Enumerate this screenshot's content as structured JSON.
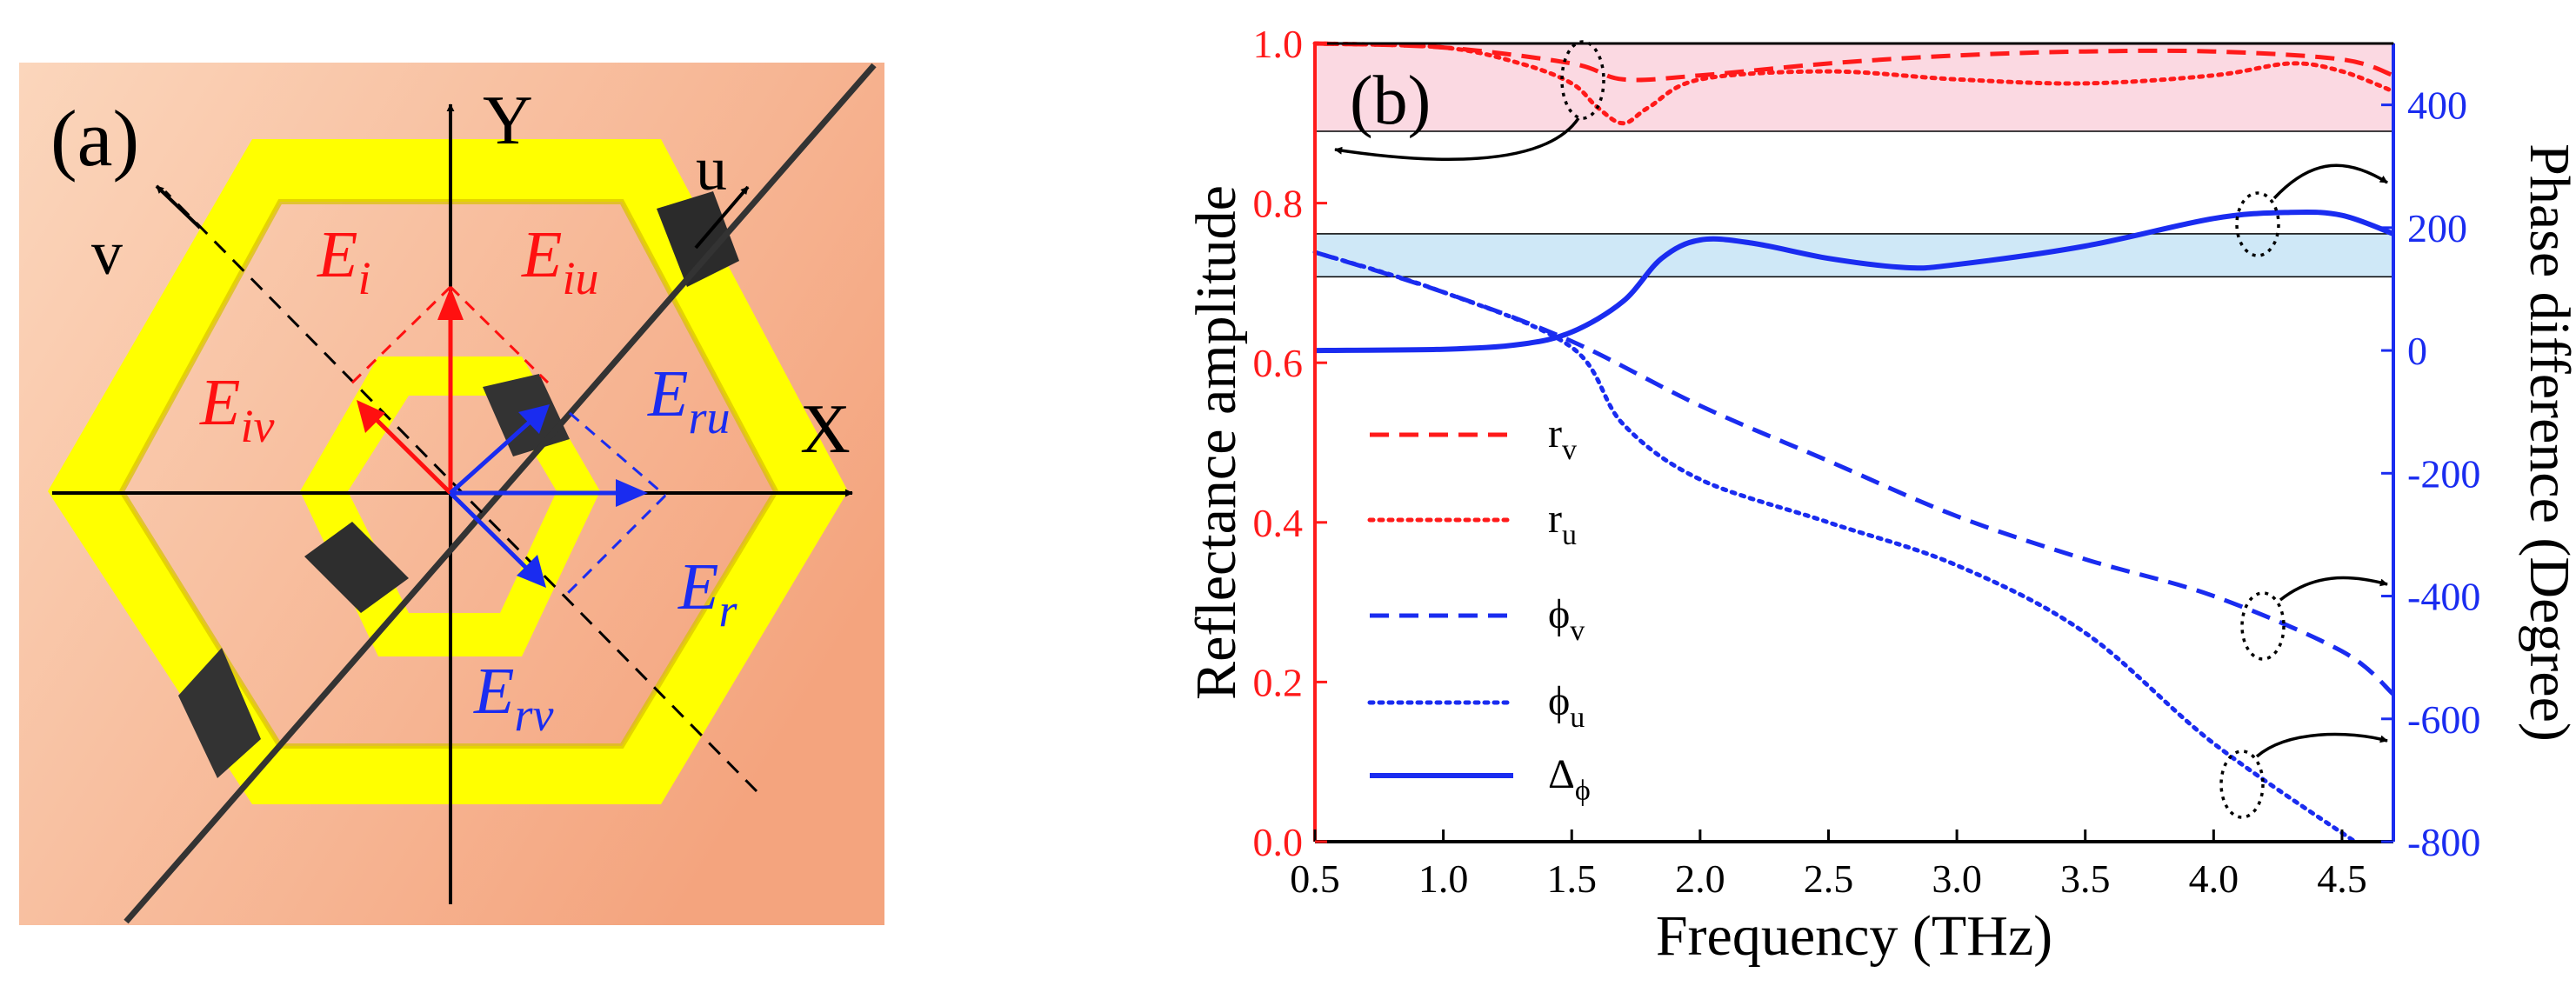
{
  "panel_a": {
    "label": "(a)",
    "axes": {
      "x": "X",
      "y": "Y",
      "u": "u",
      "v": "v"
    },
    "fields": {
      "Ei": {
        "main": "E",
        "sub": "i"
      },
      "Eiu": {
        "main": "E",
        "sub": "iu"
      },
      "Eiv": {
        "main": "E",
        "sub": "iv"
      },
      "Eru": {
        "main": "E",
        "sub": "ru"
      },
      "Er": {
        "main": "E",
        "sub": "r"
      },
      "Erv": {
        "main": "E",
        "sub": "rv"
      }
    },
    "colors": {
      "incident": "#ff1010",
      "reflected": "#1a2cf0",
      "metal": "#ffff00",
      "background": "#f8b287"
    }
  },
  "chart_data": {
    "type": "line",
    "panel_label": "(b)",
    "xlabel": "Frequency (THz)",
    "ylabel_left": "Reflectance amplitude",
    "ylabel_right": "Phase difference (Degree)",
    "xlim": [
      0.5,
      4.7
    ],
    "ylim_left": [
      0.0,
      1.0
    ],
    "ylim_right": [
      -800,
      500
    ],
    "x_ticks": [
      "0.5",
      "1.0",
      "1.5",
      "2.0",
      "2.5",
      "3.0",
      "3.5",
      "4.0",
      "4.5"
    ],
    "y_left_ticks": [
      "0.0",
      "0.2",
      "0.4",
      "0.6",
      "0.8",
      "1.0"
    ],
    "y_right_ticks": [
      "-800",
      "-600",
      "-400",
      "-200",
      "0",
      "200",
      "400"
    ],
    "colors": {
      "left_axis": "#ff1a1a",
      "right_axis": "#1a2cf0",
      "pink_band": "#fbd9e2",
      "blue_band": "#cfe8f7"
    },
    "bands": [
      {
        "axis": "left",
        "range": [
          0.89,
          1.0
        ],
        "color": "pink"
      },
      {
        "axis": "right",
        "range": [
          120,
          190
        ],
        "color": "blue"
      }
    ],
    "legend": [
      {
        "main": "r",
        "sub": "v",
        "style": "dashed",
        "color": "red"
      },
      {
        "main": "r",
        "sub": "u",
        "style": "dotted",
        "color": "red"
      },
      {
        "main": "ϕ",
        "sub": "v",
        "style": "dashed",
        "color": "blue"
      },
      {
        "main": "ϕ",
        "sub": "u",
        "style": "dotted",
        "color": "blue"
      },
      {
        "main": "Δ",
        "sub": "ϕ",
        "style": "solid",
        "color": "blue"
      }
    ],
    "series": [
      {
        "name": "r_v",
        "axis": "left",
        "style": "dashed",
        "color": "red",
        "x": [
          0.5,
          1.0,
          1.5,
          1.7,
          2.0,
          2.5,
          3.0,
          3.5,
          4.0,
          4.5,
          4.7
        ],
        "y": [
          1.0,
          0.995,
          0.975,
          0.955,
          0.96,
          0.975,
          0.985,
          0.99,
          0.99,
          0.98,
          0.96
        ]
      },
      {
        "name": "r_u",
        "axis": "left",
        "style": "dotted",
        "color": "red",
        "x": [
          0.5,
          1.0,
          1.3,
          1.5,
          1.6,
          1.7,
          1.8,
          2.0,
          2.5,
          3.0,
          3.5,
          4.0,
          4.3,
          4.5,
          4.7
        ],
        "y": [
          1.0,
          0.995,
          0.975,
          0.95,
          0.92,
          0.9,
          0.92,
          0.955,
          0.965,
          0.955,
          0.95,
          0.96,
          0.975,
          0.965,
          0.94
        ]
      },
      {
        "name": "phi_v",
        "axis": "right",
        "style": "dashed",
        "color": "blue",
        "x": [
          0.5,
          1.0,
          1.5,
          2.0,
          2.5,
          3.0,
          3.5,
          4.0,
          4.5,
          4.7
        ],
        "y": [
          160,
          95,
          15,
          -90,
          -180,
          -270,
          -340,
          -400,
          -490,
          -560
        ]
      },
      {
        "name": "phi_u",
        "axis": "right",
        "style": "dotted",
        "color": "blue",
        "x": [
          0.5,
          1.0,
          1.5,
          1.7,
          2.0,
          2.5,
          3.0,
          3.5,
          4.0,
          4.55
        ],
        "y": [
          160,
          95,
          5,
          -120,
          -210,
          -280,
          -350,
          -460,
          -640,
          -800
        ]
      },
      {
        "name": "delta_phi",
        "axis": "right",
        "style": "solid",
        "color": "blue",
        "x": [
          0.5,
          1.0,
          1.3,
          1.5,
          1.7,
          1.85,
          2.0,
          2.2,
          2.5,
          2.8,
          3.0,
          3.5,
          4.0,
          4.3,
          4.5,
          4.7
        ],
        "y": [
          0,
          2,
          10,
          30,
          80,
          150,
          180,
          175,
          150,
          135,
          140,
          170,
          215,
          225,
          220,
          190
        ]
      }
    ]
  }
}
